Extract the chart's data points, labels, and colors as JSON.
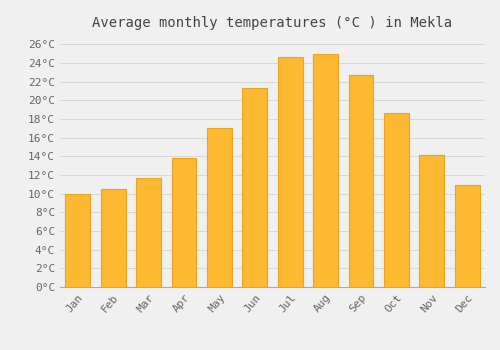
{
  "title": "Average monthly temperatures (°C ) in Mekla",
  "months": [
    "Jan",
    "Feb",
    "Mar",
    "Apr",
    "May",
    "Jun",
    "Jul",
    "Aug",
    "Sep",
    "Oct",
    "Nov",
    "Dec"
  ],
  "temperatures": [
    10.0,
    10.5,
    11.7,
    13.8,
    17.0,
    21.3,
    24.6,
    25.0,
    22.7,
    18.6,
    14.1,
    10.9
  ],
  "bar_color": "#FDB931",
  "bar_edge_color": "#E8A525",
  "background_color": "#F0F0F0",
  "grid_color": "#D8D8D8",
  "text_color": "#666666",
  "title_color": "#444444",
  "ylim": [
    0,
    27
  ],
  "ytick_step": 2,
  "title_fontsize": 10,
  "tick_fontsize": 8,
  "font_family": "monospace",
  "bar_width": 0.7
}
